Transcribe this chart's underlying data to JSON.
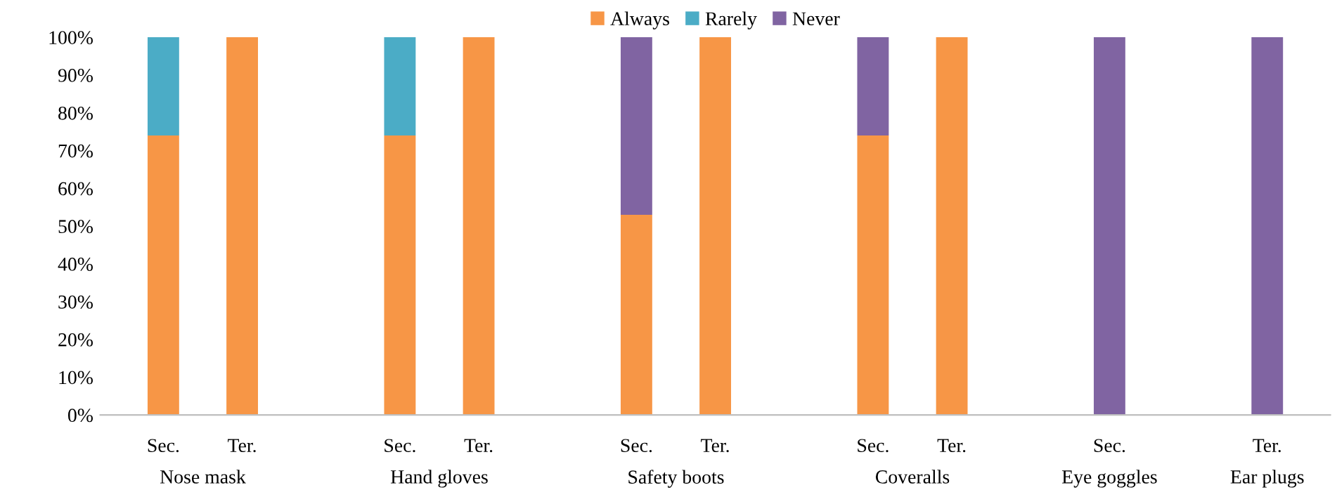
{
  "chart_data": {
    "type": "bar",
    "stacked": true,
    "categories": [
      "Sec.",
      "Ter.",
      null,
      "Sec.",
      "Ter.",
      null,
      "Sec.",
      "Ter.",
      null,
      "Sec.",
      "Ter.",
      null,
      "Sec.",
      null,
      "Ter."
    ],
    "series": [
      {
        "name": "Always",
        "color": "#f79646",
        "values": [
          74,
          100,
          null,
          74,
          100,
          null,
          53,
          100,
          null,
          74,
          100,
          null,
          0,
          null,
          0
        ]
      },
      {
        "name": "Rarely",
        "color": "#4bacc6",
        "values": [
          26,
          0,
          null,
          26,
          0,
          null,
          0,
          0,
          null,
          0,
          0,
          null,
          0,
          null,
          0
        ]
      },
      {
        "name": "Never",
        "color": "#8064a2",
        "values": [
          0,
          0,
          null,
          0,
          0,
          null,
          47,
          0,
          null,
          26,
          0,
          null,
          100,
          null,
          100
        ]
      }
    ],
    "ylim": [
      0,
      100
    ],
    "yticks": [
      {
        "value": 0,
        "label": "0%"
      },
      {
        "value": 10,
        "label": "10%"
      },
      {
        "value": 20,
        "label": "20%"
      },
      {
        "value": 30,
        "label": "30%"
      },
      {
        "value": 40,
        "label": "40%"
      },
      {
        "value": 50,
        "label": "50%"
      },
      {
        "value": 60,
        "label": "60%"
      },
      {
        "value": 70,
        "label": "70%"
      },
      {
        "value": 80,
        "label": "80%"
      },
      {
        "value": 90,
        "label": "90%"
      },
      {
        "value": 100,
        "label": "100%"
      }
    ],
    "annotations": [
      "Nose mask",
      "Hand gloves",
      "Safety boots",
      "Coveralls",
      "Eye goggles",
      "Ear plugs"
    ],
    "legend": "top",
    "grid": false
  }
}
